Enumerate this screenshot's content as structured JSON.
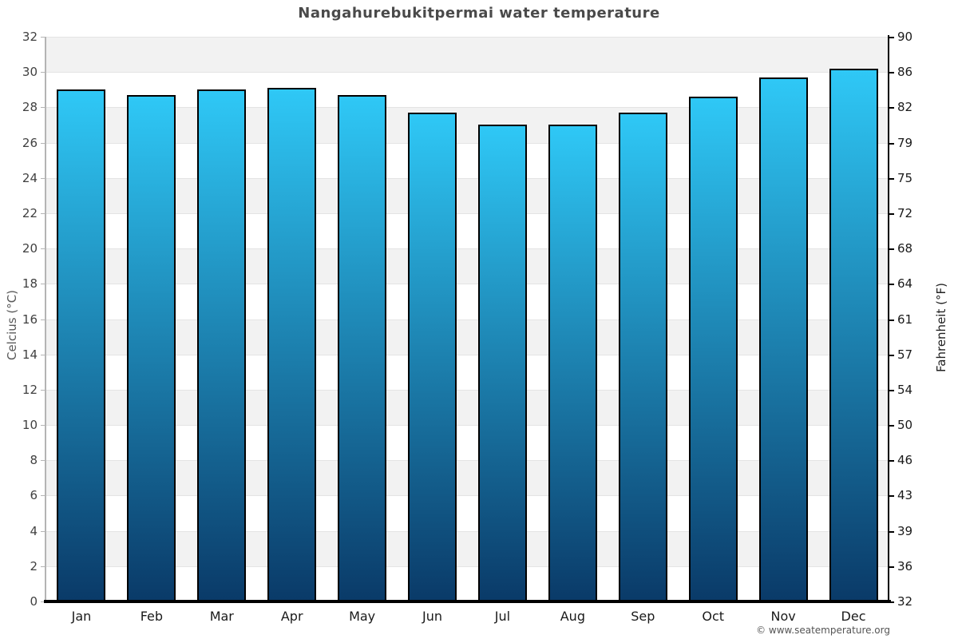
{
  "title": "Nangahurebukitpermai water temperature",
  "footer": {
    "credit": "© www.seatemperature.org"
  },
  "chart_data": {
    "type": "bar",
    "title": "Nangahurebukitpermai water temperature",
    "categories": [
      "Jan",
      "Feb",
      "Mar",
      "Apr",
      "May",
      "Jun",
      "Jul",
      "Aug",
      "Sep",
      "Oct",
      "Nov",
      "Dec"
    ],
    "series": [
      {
        "name": "Water temperature (°C)",
        "values": [
          29.0,
          28.7,
          29.0,
          29.1,
          28.7,
          27.7,
          27.0,
          27.0,
          27.7,
          28.6,
          29.7,
          30.2
        ]
      }
    ],
    "xlabel": "",
    "ylabel_left": "Celcius (°C)",
    "ylabel_right": "Fahrenheit (°F)",
    "ylim": [
      0,
      32
    ],
    "celsius_ticks": [
      0,
      2,
      4,
      6,
      8,
      10,
      12,
      14,
      16,
      18,
      20,
      22,
      24,
      26,
      28,
      30,
      32
    ],
    "fahrenheit_ticks": [
      32,
      36,
      39,
      43,
      46,
      50,
      54,
      57,
      61,
      64,
      68,
      72,
      75,
      79,
      82,
      86,
      90
    ],
    "grid": "horizontal alternating bands every 2°C, shaded band at top",
    "legend": "none",
    "colors": {
      "bar_top": "#2fc8f6",
      "bar_bottom": "#0a3a68",
      "bar_border": "#000000",
      "band_shaded": "#f2f2f2",
      "band_plain": "#ffffff",
      "title_text": "#4a4a4a"
    }
  }
}
